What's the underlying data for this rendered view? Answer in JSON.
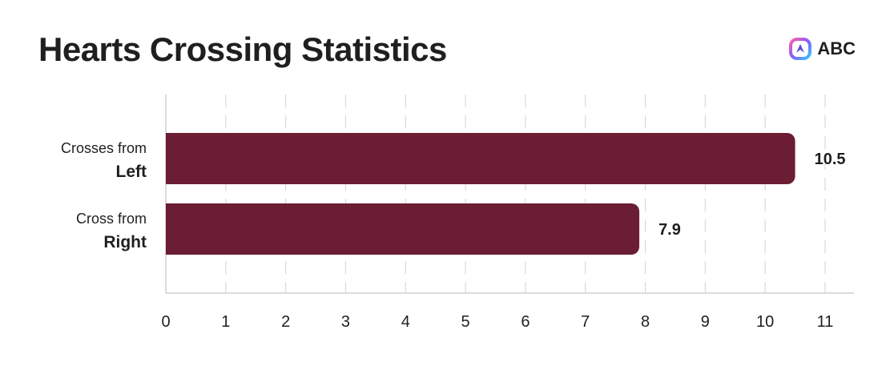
{
  "header": {
    "title": "Hearts Crossing Statistics",
    "brand_name": "ABC",
    "brand_icon": "abc-logo-icon"
  },
  "colors": {
    "bar": "#6a1d33",
    "grid": "#d9d9d9",
    "axis": "#cfcfcf",
    "text": "#1f1f1f"
  },
  "chart_data": {
    "type": "bar",
    "orientation": "horizontal",
    "categories": [
      {
        "line1": "Crosses from",
        "line2": "Left"
      },
      {
        "line1": "Cross from",
        "line2": "Right"
      }
    ],
    "values": [
      10.5,
      7.9
    ],
    "value_labels": [
      "10.5",
      "7.9"
    ],
    "xlim": [
      0,
      11
    ],
    "xticks": [
      "0",
      "1",
      "2",
      "3",
      "4",
      "5",
      "6",
      "7",
      "8",
      "9",
      "10",
      "11"
    ],
    "grid": "vertical dashed",
    "xlabel": "",
    "ylabel": ""
  }
}
